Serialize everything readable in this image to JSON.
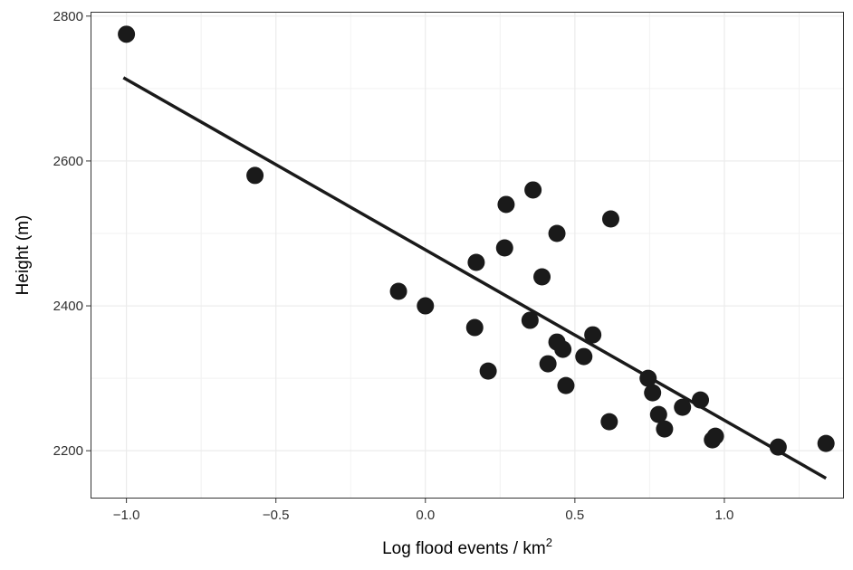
{
  "chart_data": {
    "type": "scatter",
    "xlabel": "Log flood events / km",
    "xlabel_superscript": "2",
    "ylabel": "Height (m)",
    "xlim": [
      -1.12,
      1.4
    ],
    "ylim": [
      2134,
      2806
    ],
    "x_ticks": [
      -1.0,
      -0.5,
      0.0,
      0.5,
      1.0
    ],
    "x_tick_labels": [
      "−1.0",
      "−0.5",
      "0.0",
      "0.5",
      "1.0"
    ],
    "y_ticks": [
      2200,
      2400,
      2600,
      2800
    ],
    "y_tick_labels": [
      "2200",
      "2400",
      "2600",
      "2800"
    ],
    "x_minor_ticks": [
      -0.75,
      -0.25,
      0.25,
      0.75,
      1.25
    ],
    "y_minor_ticks": [
      2300,
      2500,
      2700
    ],
    "grid": true,
    "legend": "none",
    "point_color": "#1a1a1a",
    "line_color": "#1a1a1a",
    "points": [
      {
        "x": -1.0,
        "y": 2775
      },
      {
        "x": -0.57,
        "y": 2580
      },
      {
        "x": -0.09,
        "y": 2420
      },
      {
        "x": 0.0,
        "y": 2400
      },
      {
        "x": 0.165,
        "y": 2370
      },
      {
        "x": 0.17,
        "y": 2460
      },
      {
        "x": 0.21,
        "y": 2310
      },
      {
        "x": 0.265,
        "y": 2480
      },
      {
        "x": 0.27,
        "y": 2540
      },
      {
        "x": 0.35,
        "y": 2380
      },
      {
        "x": 0.36,
        "y": 2560
      },
      {
        "x": 0.39,
        "y": 2440
      },
      {
        "x": 0.41,
        "y": 2320
      },
      {
        "x": 0.44,
        "y": 2350
      },
      {
        "x": 0.44,
        "y": 2500
      },
      {
        "x": 0.46,
        "y": 2340
      },
      {
        "x": 0.47,
        "y": 2290
      },
      {
        "x": 0.53,
        "y": 2330
      },
      {
        "x": 0.56,
        "y": 2360
      },
      {
        "x": 0.615,
        "y": 2240
      },
      {
        "x": 0.62,
        "y": 2520
      },
      {
        "x": 0.745,
        "y": 2300
      },
      {
        "x": 0.76,
        "y": 2280
      },
      {
        "x": 0.78,
        "y": 2250
      },
      {
        "x": 0.8,
        "y": 2230
      },
      {
        "x": 0.86,
        "y": 2260
      },
      {
        "x": 0.92,
        "y": 2270
      },
      {
        "x": 0.96,
        "y": 2215
      },
      {
        "x": 0.97,
        "y": 2220
      },
      {
        "x": 1.18,
        "y": 2205
      },
      {
        "x": 1.34,
        "y": 2210
      }
    ],
    "fit_line": {
      "x": [
        -1.01,
        1.34
      ],
      "y": [
        2715,
        2162
      ]
    }
  }
}
